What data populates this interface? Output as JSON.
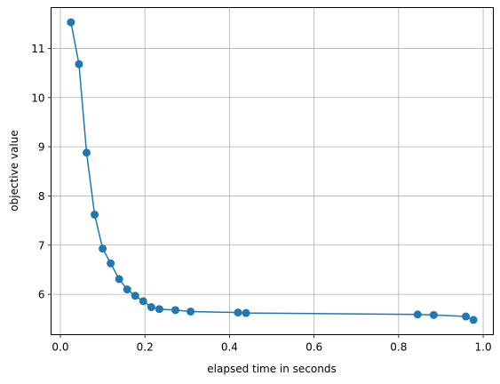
{
  "chart_data": {
    "type": "line",
    "title": "",
    "xlabel": "elapsed time in seconds",
    "ylabel": "objective value",
    "xlim": [
      -0.022,
      1.024
    ],
    "ylim": [
      5.18,
      11.83
    ],
    "xticks": [
      0.0,
      0.2,
      0.4,
      0.6,
      0.8,
      1.0
    ],
    "xtick_labels": [
      "0.0",
      "0.2",
      "0.4",
      "0.6",
      "0.8",
      "1.0"
    ],
    "yticks": [
      6,
      7,
      8,
      9,
      10,
      11
    ],
    "ytick_labels": [
      "6",
      "7",
      "8",
      "9",
      "10",
      "11"
    ],
    "grid": true,
    "legend": "none",
    "color": "#1f77b4",
    "marker": "circle",
    "series": [
      {
        "x": [
          0.025,
          0.044,
          0.062,
          0.081,
          0.1,
          0.119,
          0.139,
          0.158,
          0.177,
          0.196,
          0.215,
          0.234,
          0.272,
          0.308,
          0.42,
          0.439,
          0.845,
          0.883,
          0.959,
          0.977
        ],
        "y": [
          11.53,
          10.68,
          8.88,
          7.62,
          6.93,
          6.63,
          6.31,
          6.1,
          5.97,
          5.86,
          5.74,
          5.7,
          5.68,
          5.65,
          5.63,
          5.62,
          5.59,
          5.58,
          5.55,
          5.48
        ]
      }
    ]
  }
}
